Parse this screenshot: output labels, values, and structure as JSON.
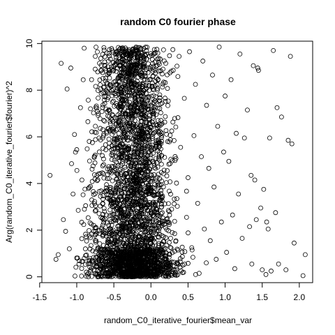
{
  "chart_data": {
    "type": "scatter",
    "title": "random C0 fourier phase",
    "xlabel": "random_C0_iterative_fourier$mean_var",
    "ylabel": "Arg(random_C0_iterative_fourier$fourier)^2",
    "xlim": [
      -1.47,
      2.18
    ],
    "ylim": [
      -0.25,
      10.1
    ],
    "xticks": [
      -1.5,
      -1.0,
      -0.5,
      0.0,
      0.5,
      1.0,
      1.5,
      2.0
    ],
    "xtick_labels": [
      "-1.5",
      "-1.0",
      "-0.5",
      "0.0",
      "0.5",
      "1.0",
      "1.5",
      "2.0"
    ],
    "yticks": [
      0,
      2,
      4,
      6,
      8,
      10
    ],
    "ytick_labels": [
      "0",
      "2",
      "4",
      "6",
      "8",
      "10"
    ],
    "grid": false,
    "marker": "open-circle",
    "points": [
      [
        -1.36,
        4.35
      ],
      [
        -1.28,
        0.75
      ],
      [
        -1.25,
        0.95
      ],
      [
        -1.21,
        9.15
      ],
      [
        -1.18,
        2.45
      ],
      [
        -1.15,
        1.95
      ],
      [
        -1.13,
        8.05
      ],
      [
        -1.1,
        1.2
      ],
      [
        -1.08,
        8.95
      ],
      [
        -1.07,
        4.85
      ],
      [
        -1.05,
        3.55
      ],
      [
        -1.03,
        6.1
      ],
      [
        -1.0,
        5.45
      ],
      [
        -0.98,
        2.85
      ],
      [
        -0.97,
        0.55
      ],
      [
        -0.95,
        7.25
      ],
      [
        -0.93,
        4.15
      ],
      [
        -0.9,
        9.8
      ],
      [
        -0.88,
        3.05
      ],
      [
        -0.87,
        0.2
      ],
      [
        -0.85,
        6.65
      ],
      [
        -0.83,
        1.75
      ],
      [
        -0.8,
        8.45
      ],
      [
        -0.78,
        4.75
      ],
      [
        -0.77,
        2.2
      ],
      [
        -0.75,
        9.45
      ],
      [
        -0.73,
        0.45
      ],
      [
        -0.7,
        5.95
      ],
      [
        -0.68,
        3.45
      ],
      [
        -0.67,
        7.85
      ],
      [
        -0.64,
        1.35
      ],
      [
        -0.62,
        9.05
      ],
      [
        -0.6,
        2.65
      ],
      [
        -0.58,
        6.35
      ],
      [
        -0.55,
        0.1
      ],
      [
        -0.53,
        4.45
      ],
      [
        -0.5,
        8.35
      ],
      [
        -0.48,
        1.55
      ],
      [
        -0.46,
        9.65
      ],
      [
        -0.44,
        3.25
      ],
      [
        -0.42,
        5.65
      ],
      [
        -0.4,
        0.85
      ],
      [
        -0.38,
        7.55
      ],
      [
        -0.36,
        2.05
      ],
      [
        -0.34,
        9.25
      ],
      [
        -0.32,
        4.05
      ],
      [
        -0.3,
        6.85
      ],
      [
        -0.28,
        0.35
      ],
      [
        -0.26,
        8.75
      ],
      [
        -0.24,
        2.45
      ],
      [
        -0.22,
        5.25
      ],
      [
        -0.2,
        9.85
      ],
      [
        -0.18,
        1.15
      ],
      [
        -0.16,
        7.05
      ],
      [
        -0.14,
        3.65
      ],
      [
        -0.12,
        8.55
      ],
      [
        -0.1,
        0.6
      ],
      [
        -0.08,
        5.05
      ],
      [
        -0.06,
        9.55
      ],
      [
        -0.04,
        2.85
      ],
      [
        -0.02,
        6.55
      ],
      [
        0.0,
        1.45
      ],
      [
        0.02,
        8.15
      ],
      [
        0.05,
        3.95
      ],
      [
        0.08,
        9.75
      ],
      [
        0.1,
        0.25
      ],
      [
        0.12,
        5.75
      ],
      [
        0.15,
        7.45
      ],
      [
        0.18,
        2.25
      ],
      [
        0.2,
        9.15
      ],
      [
        0.22,
        4.55
      ],
      [
        0.25,
        0.95
      ],
      [
        0.28,
        6.25
      ],
      [
        0.3,
        8.85
      ],
      [
        0.32,
        1.85
      ],
      [
        0.35,
        3.35
      ],
      [
        0.38,
        9.45
      ],
      [
        0.4,
        5.55
      ],
      [
        0.43,
        0.5
      ],
      [
        0.45,
        7.65
      ],
      [
        0.48,
        2.55
      ],
      [
        0.5,
        4.25
      ],
      [
        0.52,
        9.65
      ],
      [
        0.55,
        1.25
      ],
      [
        0.58,
        6.05
      ],
      [
        0.6,
        8.25
      ],
      [
        0.63,
        3.15
      ],
      [
        0.65,
        0.15
      ],
      [
        0.68,
        5.15
      ],
      [
        0.7,
        9.25
      ],
      [
        0.72,
        2.05
      ],
      [
        0.75,
        7.35
      ],
      [
        0.78,
        4.65
      ],
      [
        0.8,
        1.55
      ],
      [
        0.83,
        8.65
      ],
      [
        0.85,
        3.85
      ],
      [
        0.88,
        0.75
      ],
      [
        0.9,
        6.45
      ],
      [
        0.92,
        9.85
      ],
      [
        0.95,
        2.35
      ],
      [
        0.98,
        5.35
      ],
      [
        1.0,
        7.75
      ],
      [
        1.02,
        1.05
      ],
      [
        1.05,
        4.95
      ],
      [
        1.08,
        8.45
      ],
      [
        1.1,
        2.65
      ],
      [
        1.13,
        0.35
      ],
      [
        1.15,
        6.15
      ],
      [
        1.18,
        3.55
      ],
      [
        1.2,
        9.55
      ],
      [
        1.23,
        1.65
      ],
      [
        1.26,
        5.95
      ],
      [
        1.3,
        7.15
      ],
      [
        1.33,
        2.15
      ],
      [
        1.36,
        0.55
      ],
      [
        1.4,
        4.15
      ],
      [
        1.44,
        8.95
      ],
      [
        1.48,
        2.95
      ],
      [
        1.5,
        0.3
      ],
      [
        1.55,
        0.1
      ],
      [
        1.58,
        2.05
      ],
      [
        1.62,
        0.25
      ],
      [
        1.65,
        9.7
      ],
      [
        1.68,
        2.75
      ],
      [
        1.72,
        0.55
      ],
      [
        1.76,
        6.85
      ],
      [
        1.82,
        0.3
      ],
      [
        1.85,
        5.85
      ],
      [
        1.88,
        9.45
      ],
      [
        1.9,
        5.7
      ],
      [
        1.93,
        1.45
      ],
      [
        2.05,
        0.05
      ],
      [
        2.08,
        0.95
      ],
      [
        1.45,
        8.85
      ],
      [
        1.38,
        9.05
      ],
      [
        1.35,
        4.35
      ],
      [
        1.6,
        5.95
      ],
      [
        1.52,
        3.75
      ],
      [
        1.56,
        2.35
      ],
      [
        1.7,
        7.25
      ],
      [
        1.42,
        2.45
      ]
    ]
  }
}
